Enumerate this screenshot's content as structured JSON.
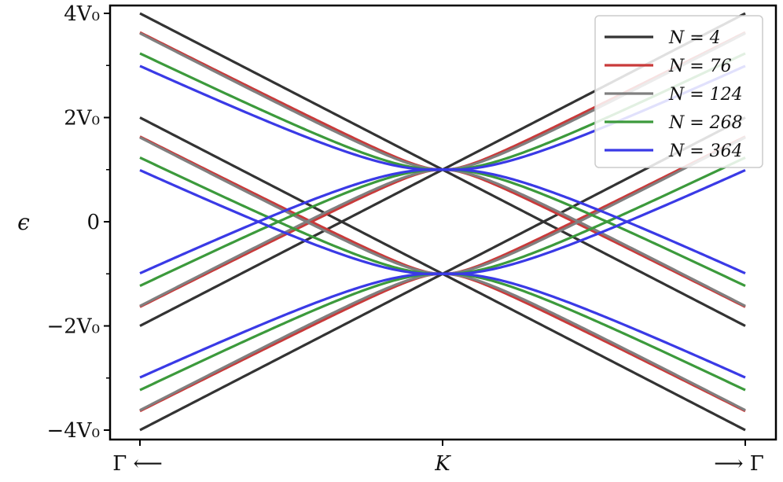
{
  "chart_data": {
    "type": "line",
    "title": "",
    "ylabel": "ϵ",
    "xlabel": "",
    "x_tick_labels": [
      "Γ ⟵",
      "K",
      "⟶ Γ"
    ],
    "y_tick_labels": [
      "4V₀",
      "2V₀",
      "0",
      "−2V₀",
      "−4V₀"
    ],
    "y_tick_values": [
      4,
      2,
      0,
      -2,
      -4
    ],
    "ylim": [
      -4.2,
      4.2
    ],
    "xlim": [
      -1.05,
      1.05
    ],
    "x_range_data": [
      -1,
      1
    ],
    "grid": false,
    "legend_position": "top-right",
    "dirac_crossing_energy": 1,
    "series": [
      {
        "name": "N = 4",
        "color": "#333333",
        "gap": 0.0,
        "outer_offset": 0.0
      },
      {
        "name": "N = 76",
        "color": "#c93a3a",
        "gap": 0.6,
        "outer_offset": 0.08
      },
      {
        "name": "N = 124",
        "color": "#808080",
        "gap": 0.82,
        "outer_offset": 0.0
      },
      {
        "name": "N = 268",
        "color": "#3c9a3c",
        "gap": 1.32,
        "outer_offset": 0.18
      },
      {
        "name": "N = 364",
        "color": "#3a3ae6",
        "gap": 1.64,
        "outer_offset": 0.3
      }
    ]
  }
}
